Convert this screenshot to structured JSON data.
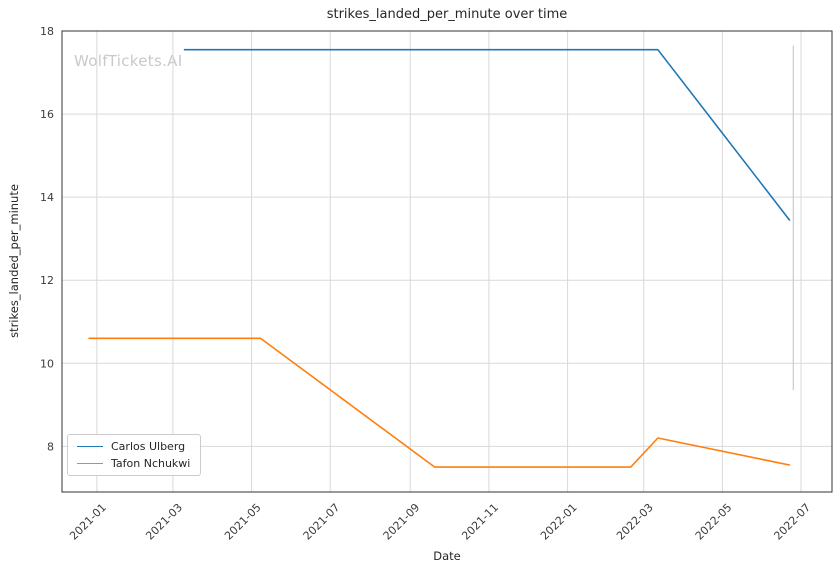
{
  "watermark": "WolfTickets.AI",
  "chart_data": {
    "type": "line",
    "title": "strikes_landed_per_minute over time",
    "xlabel": "Date",
    "ylabel": "strikes_landed_per_minute",
    "x_tick_labels": [
      "2021-01",
      "2021-03",
      "2021-05",
      "2021-07",
      "2021-09",
      "2021-11",
      "2022-01",
      "2022-03",
      "2022-05",
      "2022-07"
    ],
    "y_ticks": [
      8,
      10,
      12,
      14,
      16,
      18
    ],
    "xlim": [
      "2020-12-05",
      "2022-07-25"
    ],
    "ylim": [
      6.9,
      18.0
    ],
    "grid": true,
    "legend_position": "lower left",
    "series": [
      {
        "name": "Carlos Ulberg",
        "color": "#1f77b4",
        "points": [
          [
            "2021-03-10",
            17.55
          ],
          [
            "2022-03-12",
            17.55
          ],
          [
            "2022-06-22",
            13.45
          ]
        ]
      },
      {
        "name": "Tafon Nchukwi",
        "color": "#ff7f0e",
        "points": [
          [
            "2020-12-26",
            10.6
          ],
          [
            "2021-05-08",
            10.6
          ],
          [
            "2021-09-20",
            7.5
          ],
          [
            "2022-02-19",
            7.5
          ],
          [
            "2022-03-12",
            8.2
          ],
          [
            "2022-06-22",
            7.55
          ]
        ]
      }
    ],
    "marker_line": {
      "date": "2022-06-25",
      "y_from": 9.35,
      "y_to": 17.65,
      "color": "#c7ccd4"
    },
    "colors": {
      "grid": "#d9d9d9",
      "spine": "#333333",
      "tick_text": "#3b3b3b"
    }
  }
}
